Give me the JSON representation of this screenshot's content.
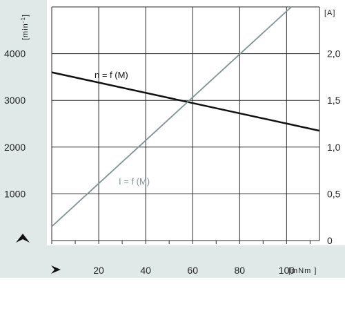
{
  "chart_data": {
    "type": "line",
    "title": "",
    "x": [
      0,
      114
    ],
    "xlabel_unit": "[mNm ]",
    "xticks": [
      "20",
      "40",
      "60",
      "80",
      "100"
    ],
    "xlim": [
      0,
      114
    ],
    "y_left_unit": "[min-1]",
    "y_left_ticks": [
      "4000",
      "3000",
      "2000",
      "1000"
    ],
    "y_left_lim": [
      0,
      5000
    ],
    "y_right_unit": "[A]",
    "y_right_ticks": [
      "2,0",
      "1,5",
      "1,0",
      "0,5",
      "0"
    ],
    "y_right_lim": [
      0,
      2.5
    ],
    "grid": true,
    "series": [
      {
        "name": "n = f (M)",
        "axis": "left",
        "color": "#111111",
        "x": [
          0,
          114
        ],
        "y": [
          3600,
          2350
        ]
      },
      {
        "name": "I = f (M)",
        "axis": "right",
        "color": "#7f9295",
        "x": [
          0,
          102
        ],
        "y": [
          0.15,
          2.5
        ]
      }
    ]
  },
  "colors": {
    "band": "#e0e8e8",
    "grid": "#2a2a2a",
    "line_speed": "#111111",
    "line_current": "#7f9295"
  },
  "icons": {
    "y_direction": "arrow-up-icon",
    "x_direction": "arrow-right-icon"
  }
}
